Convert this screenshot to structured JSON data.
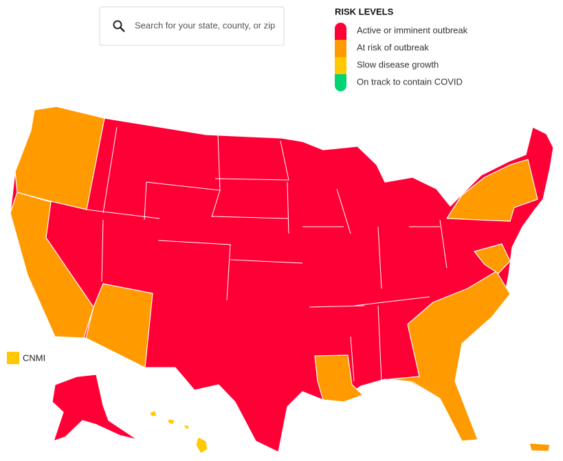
{
  "search": {
    "placeholder": "Search for your state, county, or zip"
  },
  "legend": {
    "title": "RISK LEVELS",
    "items": [
      {
        "label": "Active or imminent outbreak",
        "color": "#ff0036"
      },
      {
        "label": "At risk of outbreak",
        "color": "#ff9a00"
      },
      {
        "label": "Slow disease growth",
        "color": "#ffc800"
      },
      {
        "label": "On track to contain COVID",
        "color": "#00d473"
      }
    ]
  },
  "territory": {
    "label": "CNMI",
    "color": "#ffc800"
  }
}
